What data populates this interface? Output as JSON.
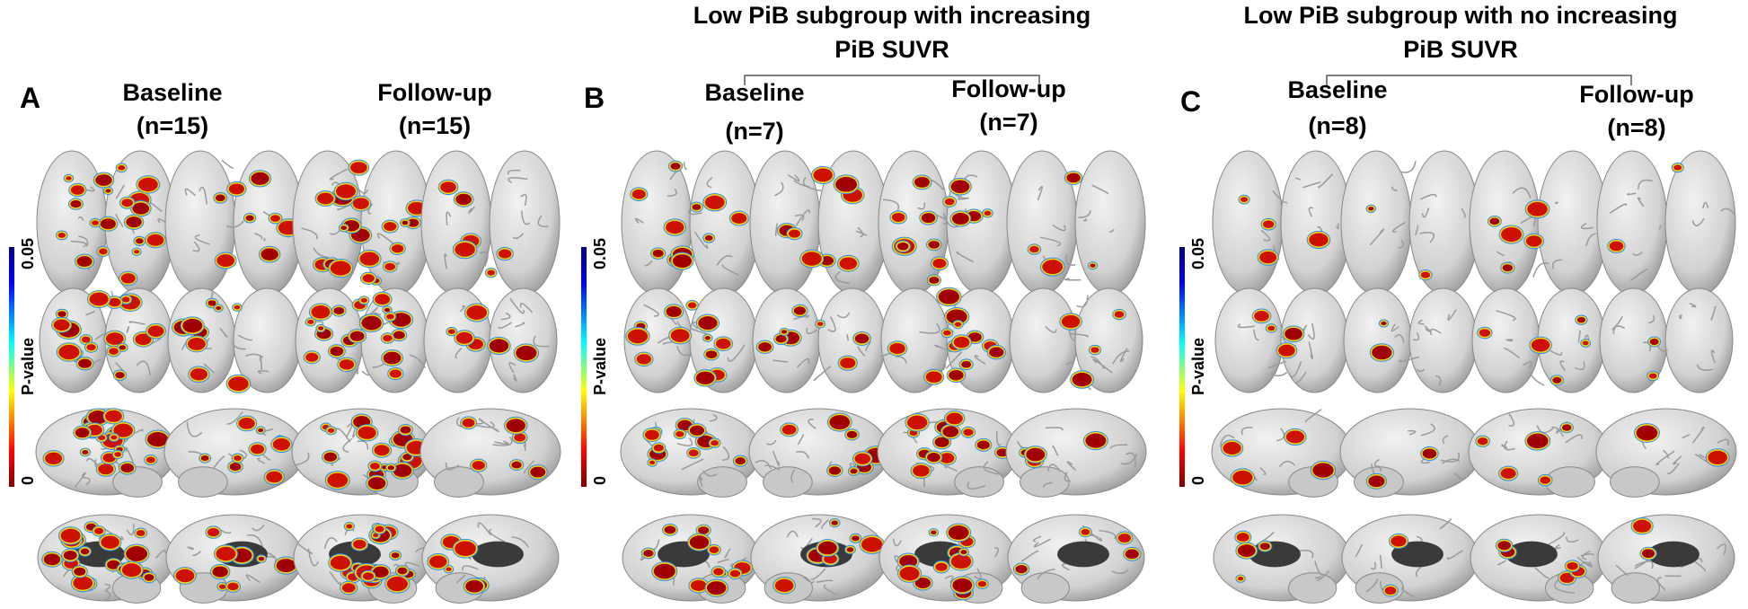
{
  "panels": [
    {
      "label": "A",
      "columns": [
        {
          "title": "Baseline",
          "n": "(n=15)"
        },
        {
          "title": "Follow-up",
          "n": "(n=15)"
        }
      ],
      "colorbar": {
        "top": "0.05",
        "label": "P-value",
        "bottom": "0"
      }
    },
    {
      "label": "B",
      "header": [
        "Low PiB subgroup with increasing",
        "PiB SUVR"
      ],
      "columns": [
        {
          "title": "Baseline",
          "n": "(n=7)"
        },
        {
          "title": "Follow-up",
          "n": "(n=7)"
        }
      ],
      "colorbar": {
        "top": "0.05",
        "label": "P-value",
        "bottom": "0"
      }
    },
    {
      "label": "C",
      "header": [
        "Low PiB subgroup with no increasing",
        "PiB SUVR"
      ],
      "columns": [
        {
          "title": "Baseline",
          "n": "(n=8)"
        },
        {
          "title": "Follow-up",
          "n": "(n=8)"
        }
      ],
      "colorbar": {
        "top": "0.05",
        "label": "P-value",
        "bottom": "0"
      }
    }
  ]
}
